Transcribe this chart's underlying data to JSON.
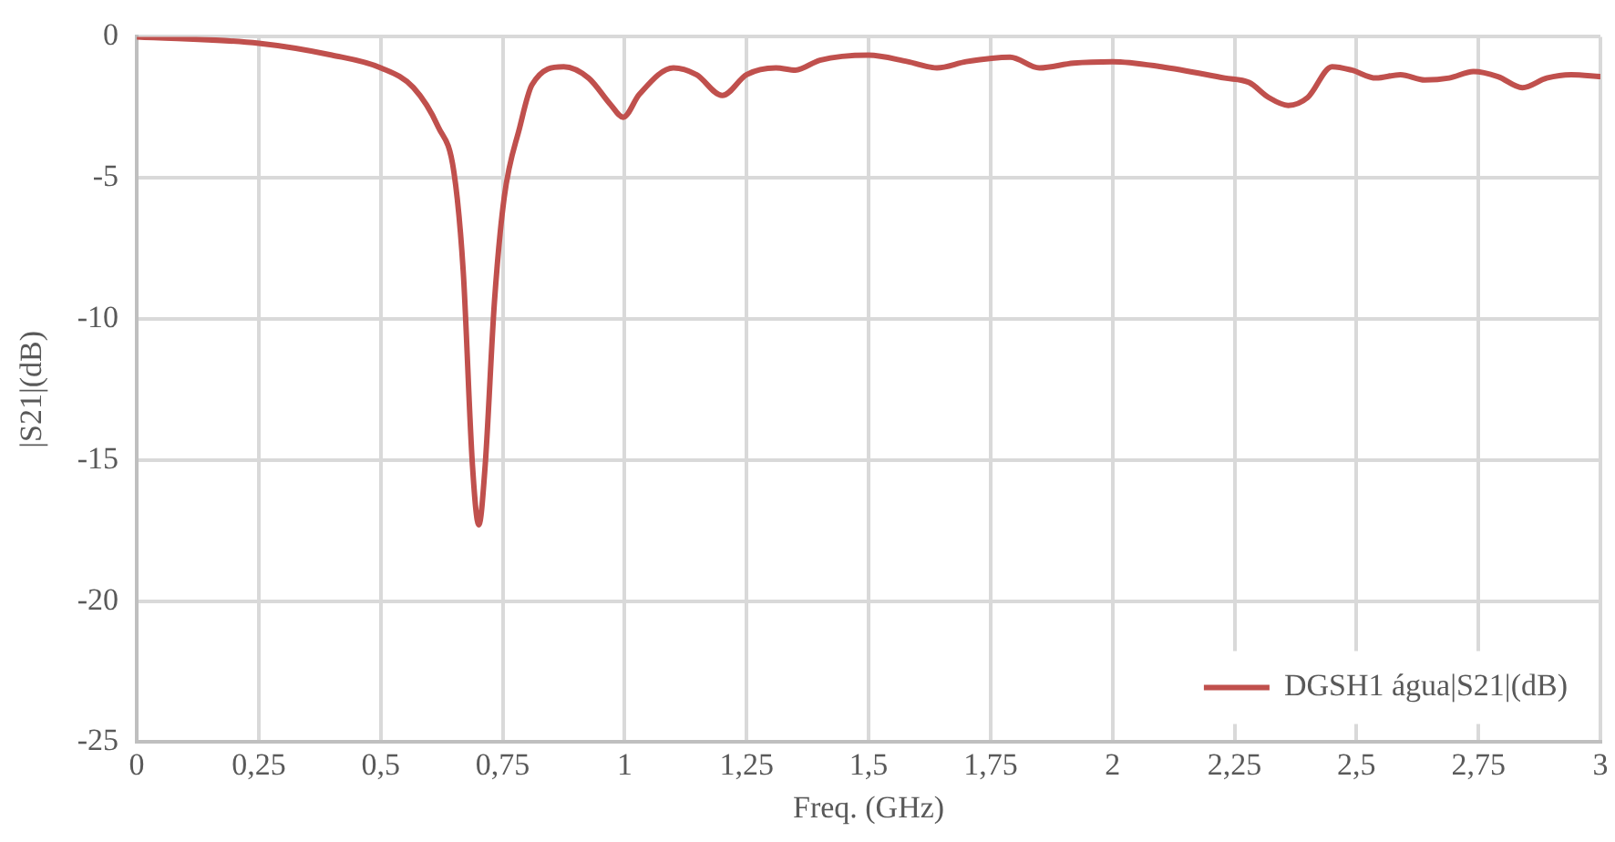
{
  "chart_data": {
    "type": "line",
    "xlabel": "Freq. (GHz)",
    "ylabel": "|S21|(dB)",
    "xlim": [
      0,
      3
    ],
    "xticks": [
      0,
      {
        "value": 0.25,
        "label": "0,25"
      },
      {
        "value": 0.5,
        "label": "0,5"
      },
      {
        "value": 0.75,
        "label": "0,75"
      },
      1,
      {
        "value": 1.25,
        "label": "1,25"
      },
      {
        "value": 1.5,
        "label": "1,5"
      },
      {
        "value": 1.75,
        "label": "1,75"
      },
      2,
      {
        "value": 2.25,
        "label": "2,25"
      },
      {
        "value": 2.5,
        "label": "2,5"
      },
      {
        "value": 2.75,
        "label": "2,75"
      },
      3
    ],
    "ylim": [
      -25,
      0
    ],
    "yticks": [
      -25,
      -20,
      -15,
      -10,
      -5,
      0
    ],
    "grid": true,
    "legend": "bottom right",
    "marker": "none",
    "line_style": "solid",
    "series": [
      {
        "name": "DGSH1 água|S21|(dB)",
        "color": "#c0504d",
        "x": [
          0,
          0.25,
          0.4,
          0.5,
          0.567,
          0.618,
          0.65,
          0.669,
          0.688,
          0.701,
          0.714,
          0.733,
          0.753,
          0.785,
          0.81,
          0.875,
          0.926,
          0.971,
          0.997,
          1.03,
          1.1,
          1.147,
          1.2,
          1.25,
          1.31,
          1.35,
          1.4,
          1.5,
          1.58,
          1.64,
          1.7,
          1.79,
          1.85,
          1.92,
          2.0,
          2.1,
          2.23,
          2.28,
          2.32,
          2.36,
          2.4,
          2.45,
          2.49,
          2.54,
          2.59,
          2.64,
          2.69,
          2.74,
          2.79,
          2.84,
          2.89,
          2.94,
          3.0
        ],
        "values": [
          0,
          -0.23,
          -0.65,
          -1.1,
          -1.8,
          -3.2,
          -4.8,
          -8.3,
          -15.2,
          -17.3,
          -15.2,
          -9.4,
          -5.7,
          -3.2,
          -1.7,
          -1.06,
          -1.46,
          -2.4,
          -2.85,
          -2.04,
          -1.1,
          -1.34,
          -2.08,
          -1.34,
          -1.1,
          -1.18,
          -0.83,
          -0.65,
          -0.88,
          -1.1,
          -0.88,
          -0.72,
          -1.1,
          -0.93,
          -0.88,
          -1.06,
          -1.46,
          -1.62,
          -2.15,
          -2.43,
          -2.15,
          -1.06,
          -1.18,
          -1.46,
          -1.34,
          -1.53,
          -1.46,
          -1.23,
          -1.41,
          -1.8,
          -1.46,
          -1.34,
          -1.41
        ]
      }
    ]
  }
}
